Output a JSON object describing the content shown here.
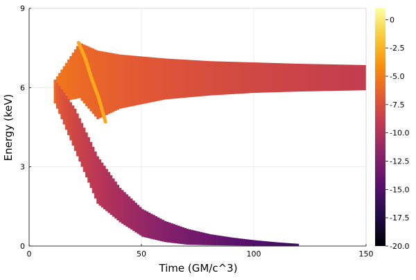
{
  "chart_data": {
    "type": "heatmap",
    "title": "",
    "xlabel": "Time (GM/c^3)",
    "ylabel": "Energy (keV)",
    "xlim": [
      0,
      150
    ],
    "ylim": [
      0,
      9
    ],
    "x_ticks": [
      "0",
      "50",
      "100",
      "150"
    ],
    "x_tick_values": [
      0,
      50,
      100,
      150
    ],
    "y_ticks": [
      "0",
      "3",
      "6",
      "9"
    ],
    "y_tick_values": [
      0,
      3,
      6,
      9
    ],
    "grid": true,
    "legend": "colorbar-right",
    "colorbar": {
      "range": [
        -20.0,
        1.0
      ],
      "colormap": "inferno",
      "tick_labels": [
        "0",
        "-2.5",
        "-5.0",
        "-7.5",
        "-10.0",
        "-12.5",
        "-15.0",
        "-17.5",
        "-20.0"
      ],
      "tick_values": [
        0,
        -2.5,
        -5.0,
        -7.5,
        -10.0,
        -12.5,
        -15.0,
        -17.5,
        -20.0
      ]
    },
    "regions": [
      {
        "name": "upper-branch",
        "value_at_start": -5.0,
        "value_at_end": -9.0,
        "x": [
          11,
          22,
          30,
          40,
          60,
          80,
          100,
          120,
          150
        ],
        "y_top": [
          6.3,
          7.7,
          7.4,
          7.25,
          7.1,
          7.0,
          6.95,
          6.9,
          6.85
        ],
        "y_bottom": [
          5.4,
          5.6,
          4.8,
          5.2,
          5.55,
          5.7,
          5.8,
          5.85,
          5.9
        ]
      },
      {
        "name": "lower-branch",
        "value_at_start": -6.0,
        "value_at_end": -16.0,
        "x": [
          11,
          20,
          30,
          40,
          50,
          60,
          70,
          80,
          90,
          100,
          110,
          120
        ],
        "y_top": [
          6.3,
          5.2,
          3.4,
          2.2,
          1.4,
          0.95,
          0.65,
          0.45,
          0.32,
          0.22,
          0.14,
          0.08
        ],
        "y_bottom": [
          5.4,
          3.6,
          1.6,
          0.9,
          0.35,
          0.15,
          0.05,
          0.03,
          0.02,
          0.01,
          0.0,
          0.0
        ]
      },
      {
        "name": "bright-ridge",
        "value": -3.0,
        "x": [
          22,
          25,
          28,
          31,
          34
        ],
        "y": [
          7.7,
          7.1,
          6.3,
          5.6,
          4.7
        ]
      }
    ]
  }
}
